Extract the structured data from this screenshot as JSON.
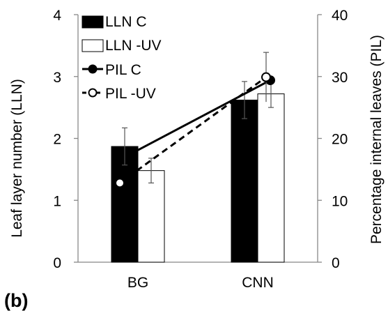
{
  "chart_data": {
    "type": "bar",
    "panel_label": "(b)",
    "categories": [
      "BG",
      "CNN"
    ],
    "y_left": {
      "label": "Leaf layer number  (LLN)",
      "lim": [
        0,
        4
      ],
      "ticks": [
        0,
        1,
        2,
        3,
        4
      ]
    },
    "y_right": {
      "label": "Percentage internal leaves (PIL)",
      "lim": [
        0,
        40
      ],
      "ticks": [
        0,
        10,
        20,
        30,
        40
      ]
    },
    "bar_series": [
      {
        "name": "LLN C",
        "fill": "#000000",
        "values": [
          1.87,
          2.62
        ],
        "errors": [
          0.3,
          0.3
        ]
      },
      {
        "name": "LLN -UV",
        "fill": "#ffffff",
        "values": [
          1.48,
          2.72
        ],
        "errors": [
          0.2,
          0.22
        ]
      }
    ],
    "line_series": [
      {
        "name": "PIL C",
        "style": "solid",
        "marker": "filled-circle",
        "values": [
          17.7,
          29.4
        ],
        "errors": [
          0,
          0
        ]
      },
      {
        "name": "PIL -UV",
        "style": "dashed",
        "marker": "open-circle",
        "values": [
          12.8,
          29.9
        ],
        "errors": [
          0,
          4
        ]
      }
    ],
    "legend_position": "top-left",
    "grid": false
  }
}
